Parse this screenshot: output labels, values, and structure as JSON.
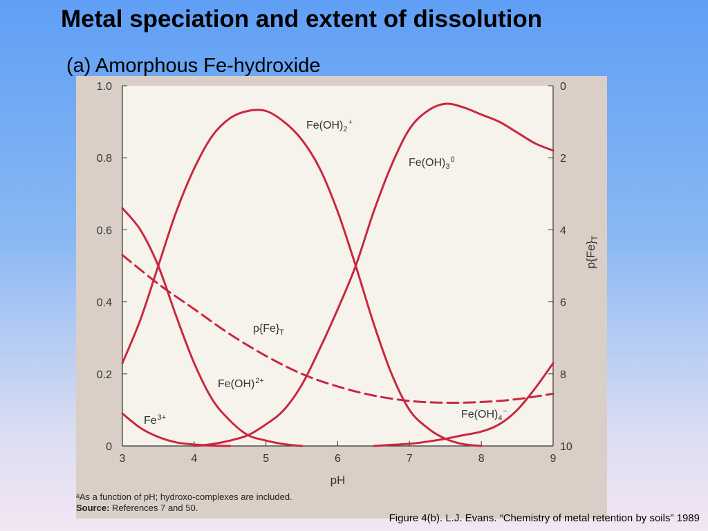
{
  "slide": {
    "title": "Metal speciation and extent of dissolution",
    "subtitle": "(a) Amorphous Fe-hydroxide",
    "caption": "Figure 4(b). L.J. Evans. “Chemistry of metal retention by soils” 1989"
  },
  "footnote": {
    "line1": "ᵃAs a function of pH; hydroxo-complexes are included.",
    "source_label": "Source:",
    "source_text": " References 7 and 50."
  },
  "colors": {
    "curve": "#c8283e",
    "axis": "#333333",
    "plot_background": "#f6f2ec"
  },
  "chart_data": {
    "type": "line",
    "xlabel": "pH",
    "ylabel_left": "",
    "ylabel_right": "p{Fe}T",
    "xlim": [
      3,
      9
    ],
    "ylim_left": [
      0,
      1.0
    ],
    "ylim_right": [
      0,
      10
    ],
    "right_axis_inverted": true,
    "x_ticks": [
      "3",
      "4",
      "5",
      "6",
      "7",
      "8",
      "9"
    ],
    "y_left_ticks": [
      "0",
      "0.2",
      "0.4",
      "0.6",
      "0.8",
      "1.0"
    ],
    "y_right_ticks": [
      "0",
      "2",
      "4",
      "6",
      "8",
      "10"
    ],
    "series": [
      {
        "name": "Fe3+",
        "axis": "left",
        "label": {
          "text": "Fe",
          "sup": "3+"
        },
        "x": [
          3.0,
          3.25,
          3.5,
          3.75,
          4.0,
          4.25,
          4.5
        ],
        "y": [
          0.09,
          0.05,
          0.025,
          0.01,
          0.004,
          0.001,
          0.0
        ]
      },
      {
        "name": "Fe(OH)2+ (dication)",
        "axis": "left",
        "label": {
          "text": "Fe(OH)",
          "sup": "2+"
        },
        "x": [
          3.0,
          3.25,
          3.5,
          3.75,
          4.0,
          4.25,
          4.5,
          4.75,
          5.0,
          5.25,
          5.5
        ],
        "y": [
          0.66,
          0.6,
          0.5,
          0.36,
          0.23,
          0.13,
          0.07,
          0.03,
          0.015,
          0.005,
          0.0
        ]
      },
      {
        "name": "Fe(OH)2+",
        "axis": "left",
        "label": {
          "text": "Fe(OH)",
          "sub": "2",
          "sup": "+"
        },
        "x": [
          3.0,
          3.25,
          3.5,
          3.75,
          4.0,
          4.25,
          4.5,
          4.75,
          5.0,
          5.25,
          5.5,
          5.75,
          6.0,
          6.25,
          6.5,
          6.75,
          7.0,
          7.25,
          7.5,
          7.75,
          8.0
        ],
        "y": [
          0.23,
          0.35,
          0.5,
          0.65,
          0.77,
          0.86,
          0.91,
          0.93,
          0.93,
          0.9,
          0.85,
          0.77,
          0.65,
          0.5,
          0.34,
          0.2,
          0.1,
          0.05,
          0.02,
          0.005,
          0.0
        ]
      },
      {
        "name": "Fe(OH)30",
        "axis": "left",
        "label": {
          "text": "Fe(OH)",
          "sub": "3",
          "sup": "0"
        },
        "x": [
          4.0,
          4.25,
          4.5,
          4.75,
          5.0,
          5.25,
          5.5,
          5.75,
          6.0,
          6.25,
          6.5,
          6.75,
          7.0,
          7.25,
          7.5,
          7.75,
          8.0,
          8.25,
          8.5,
          8.75,
          9.0
        ],
        "y": [
          0.0,
          0.005,
          0.015,
          0.03,
          0.06,
          0.1,
          0.17,
          0.27,
          0.38,
          0.5,
          0.65,
          0.78,
          0.88,
          0.93,
          0.95,
          0.94,
          0.92,
          0.9,
          0.87,
          0.84,
          0.82
        ]
      },
      {
        "name": "Fe(OH)4-",
        "axis": "left",
        "label": {
          "text": "Fe(OH)",
          "sub": "4",
          "sup": "−"
        },
        "x": [
          6.5,
          6.75,
          7.0,
          7.25,
          7.5,
          7.75,
          8.0,
          8.25,
          8.5,
          8.75,
          9.0
        ],
        "y": [
          0.0,
          0.003,
          0.006,
          0.012,
          0.02,
          0.03,
          0.04,
          0.06,
          0.1,
          0.16,
          0.23
        ]
      },
      {
        "name": "p{Fe}T",
        "axis": "right",
        "dashed": true,
        "label": {
          "text": "p{Fe}",
          "sub": "T"
        },
        "x": [
          3.0,
          3.5,
          4.0,
          4.5,
          5.0,
          5.5,
          6.0,
          6.5,
          7.0,
          7.5,
          8.0,
          8.5,
          9.0
        ],
        "y": [
          4.7,
          5.5,
          6.2,
          6.9,
          7.5,
          8.0,
          8.35,
          8.6,
          8.75,
          8.8,
          8.78,
          8.7,
          8.55
        ]
      }
    ],
    "grid": false,
    "legend": "none (curves labelled inline)"
  }
}
